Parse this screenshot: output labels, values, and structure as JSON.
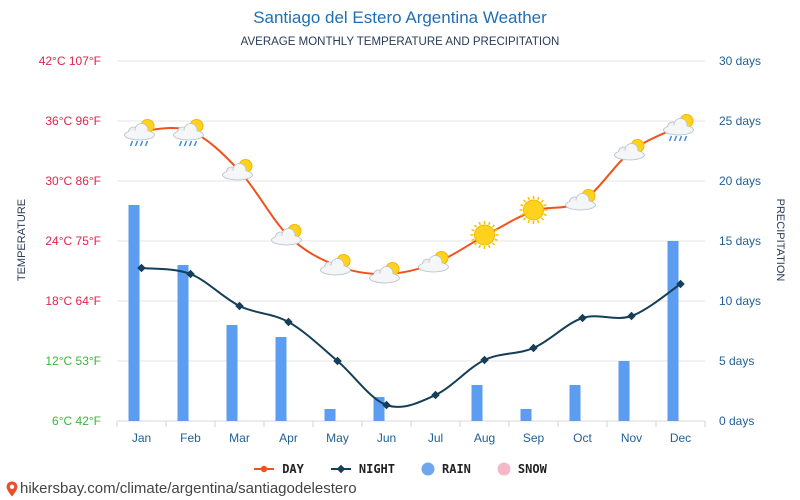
{
  "header": {
    "title": "Santiago del Estero Argentina Weather",
    "subtitle": "AVERAGE MONTHLY TEMPERATURE AND PRECIPITATION"
  },
  "axes": {
    "left_label": "TEMPERATURE",
    "right_label": "PRECIPITATION",
    "left_ticks": [
      "6°C 42°F",
      "12°C 53°F",
      "18°C 64°F",
      "24°C 75°F",
      "30°C 86°F",
      "36°C 96°F",
      "42°C 107°F"
    ],
    "right_ticks": [
      "0 days",
      "5 days",
      "10 days",
      "15 days",
      "20 days",
      "25 days",
      "30 days"
    ],
    "left_tick_colors": [
      "#3cb53c",
      "#3cb53c",
      "#e0244a",
      "#e0244a",
      "#e0244a",
      "#e0244a",
      "#e0244a"
    ],
    "right_tick_color": "#1f5f95"
  },
  "legend": {
    "day": "DAY",
    "night": "NIGHT",
    "rain": "RAIN",
    "snow": "SNOW"
  },
  "footer": {
    "url": "hikersbay.com/climate/argentina/santiagodelestero"
  },
  "colors": {
    "day": "#f0521c",
    "night": "#153e59",
    "rain": "#5c9df2",
    "snow": "#f5b8c8",
    "grid": "#e6e6e6",
    "month_label": "#1f5f95"
  },
  "chart_data": {
    "type": "bar+line",
    "title": "Santiago del Estero Argentina Weather",
    "subtitle": "AVERAGE MONTHLY TEMPERATURE AND PRECIPITATION",
    "categories": [
      "Jan",
      "Feb",
      "Mar",
      "Apr",
      "May",
      "Jun",
      "Jul",
      "Aug",
      "Sep",
      "Oct",
      "Nov",
      "Dec"
    ],
    "y_left": {
      "label": "TEMPERATURE",
      "unit": "°C",
      "range": [
        6,
        42
      ]
    },
    "y_right": {
      "label": "PRECIPITATION",
      "unit": "days",
      "range": [
        0,
        30
      ]
    },
    "series": [
      {
        "name": "DAY",
        "axis": "left",
        "kind": "line",
        "values": [
          35,
          35,
          31,
          24.5,
          21.5,
          20.7,
          21.8,
          24.5,
          27,
          28,
          33,
          35.5
        ]
      },
      {
        "name": "NIGHT",
        "axis": "left",
        "kind": "line",
        "values": [
          21.3,
          20.7,
          17.5,
          15.9,
          12,
          7.6,
          8.6,
          12.1,
          13.3,
          16.3,
          16.5,
          19.7
        ]
      },
      {
        "name": "RAIN",
        "axis": "right",
        "kind": "bar",
        "values": [
          18,
          13,
          8,
          7,
          1,
          2,
          0,
          3,
          1,
          3,
          5,
          15
        ]
      },
      {
        "name": "SNOW",
        "axis": "right",
        "kind": "bar",
        "values": [
          0,
          0,
          0,
          0,
          0,
          0,
          0,
          0,
          0,
          0,
          0,
          0
        ]
      }
    ],
    "weather_icons": [
      "sun-cloud-rain",
      "sun-cloud-rain",
      "sun-cloud",
      "sun-cloud",
      "sun-cloud",
      "sun-cloud",
      "sun-cloud",
      "sun",
      "sun",
      "sun-cloud",
      "sun-cloud",
      "sun-cloud-rain"
    ]
  }
}
